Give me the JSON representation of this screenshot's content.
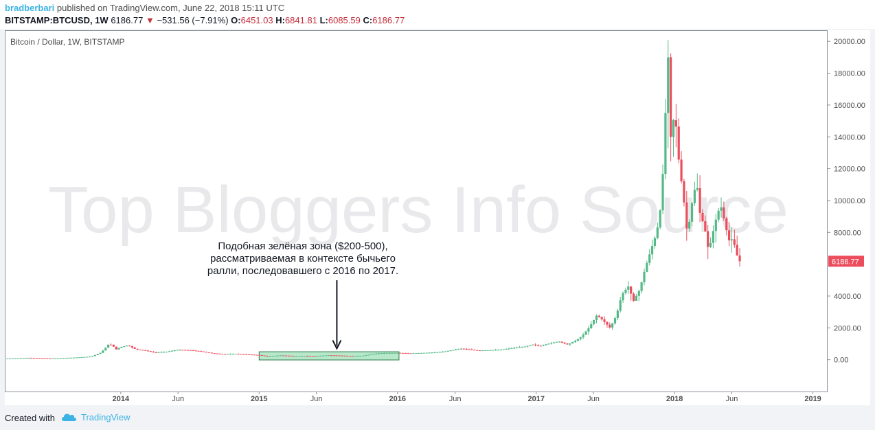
{
  "header": {
    "author": "bradberbari",
    "published_text": " published on TradingView.com, June 22, 2018 15:11 UTC",
    "symbol": "BITSTAMP:BTCUSD, 1W",
    "last": "6186.77",
    "change_arrow": "▼",
    "change": "−531.56 (−7.91%)",
    "o_label": "O:",
    "o_value": "6451.03",
    "h_label": "H:",
    "h_value": "6841.81",
    "l_label": "L:",
    "l_value": "6085.59",
    "c_label": "C:",
    "c_value": "6186.77"
  },
  "chart_title": "Bitcoin / Dollar, 1W, BITSTAMP",
  "watermark": "Top Bloggers Info Source",
  "annotation": {
    "lines": [
      "Подобная зелёная зона ($200-500),",
      "рассматриваемая в контексте бычьего",
      "ралли, последовавшего с 2016 по 2017."
    ]
  },
  "price_label": "6186.77",
  "footer": {
    "created_with": "Created with",
    "brand": "TradingView"
  },
  "colors": {
    "up": "#53b987",
    "down": "#eb4d5c",
    "zone_fill": "#9fe0b8",
    "zone_stroke": "#2f7a4b",
    "price_tag": "#eb4d5c",
    "author": "#3bb3e4"
  },
  "chart_data": {
    "type": "candlestick",
    "title": "Bitcoin / Dollar, 1W, BITSTAMP",
    "x_ticks": [
      {
        "label": "2014",
        "date": "2014-01-01",
        "bold": true
      },
      {
        "label": "Jun",
        "date": "2014-06-01",
        "bold": false
      },
      {
        "label": "2015",
        "date": "2015-01-01",
        "bold": true
      },
      {
        "label": "Jun",
        "date": "2015-06-01",
        "bold": false
      },
      {
        "label": "2016",
        "date": "2016-01-01",
        "bold": true
      },
      {
        "label": "Jun",
        "date": "2016-06-01",
        "bold": false
      },
      {
        "label": "2017",
        "date": "2017-01-01",
        "bold": true
      },
      {
        "label": "Jun",
        "date": "2017-06-01",
        "bold": false
      },
      {
        "label": "2018",
        "date": "2018-01-01",
        "bold": true
      },
      {
        "label": "Jun",
        "date": "2018-06-01",
        "bold": false
      },
      {
        "label": "2019",
        "date": "2019-01-01",
        "bold": true
      }
    ],
    "y_ticks": [
      "20000.00",
      "18000.00",
      "16000.00",
      "14000.00",
      "12000.00",
      "10000.00",
      "8000.00",
      "4000.00",
      "2000.00",
      "0.00"
    ],
    "ylim": [
      -2000,
      20700
    ],
    "xlim": [
      "2013-03-01",
      "2019-02-07"
    ],
    "zone": {
      "x_start": "2015-01-01",
      "x_end": "2016-01-05",
      "y_low": 200,
      "y_high": 500
    },
    "annotation_arrow_tip": {
      "date": "2015-07-25",
      "value": 700
    },
    "closes": [
      [
        "2013-03-01",
        70
      ],
      [
        "2013-05-01",
        120
      ],
      [
        "2013-07-01",
        90
      ],
      [
        "2013-09-01",
        130
      ],
      [
        "2013-10-15",
        200
      ],
      [
        "2013-11-10",
        450
      ],
      [
        "2013-11-20",
        700
      ],
      [
        "2013-12-01",
        1000
      ],
      [
        "2013-12-10",
        900
      ],
      [
        "2013-12-20",
        650
      ],
      [
        "2014-01-01",
        800
      ],
      [
        "2014-01-20",
        900
      ],
      [
        "2014-02-10",
        650
      ],
      [
        "2014-03-01",
        600
      ],
      [
        "2014-04-01",
        450
      ],
      [
        "2014-05-01",
        500
      ],
      [
        "2014-06-01",
        620
      ],
      [
        "2014-07-01",
        600
      ],
      [
        "2014-08-01",
        520
      ],
      [
        "2014-09-01",
        400
      ],
      [
        "2014-10-01",
        350
      ],
      [
        "2014-11-01",
        370
      ],
      [
        "2014-12-01",
        330
      ],
      [
        "2015-01-01",
        290
      ],
      [
        "2015-01-20",
        220
      ],
      [
        "2015-03-01",
        270
      ],
      [
        "2015-04-01",
        230
      ],
      [
        "2015-05-01",
        235
      ],
      [
        "2015-06-01",
        230
      ],
      [
        "2015-07-01",
        280
      ],
      [
        "2015-08-01",
        260
      ],
      [
        "2015-09-01",
        235
      ],
      [
        "2015-10-01",
        250
      ],
      [
        "2015-11-05",
        390
      ],
      [
        "2015-12-01",
        420
      ],
      [
        "2016-01-01",
        430
      ],
      [
        "2016-02-01",
        400
      ],
      [
        "2016-03-01",
        420
      ],
      [
        "2016-04-01",
        450
      ],
      [
        "2016-05-01",
        500
      ],
      [
        "2016-06-15",
        700
      ],
      [
        "2016-07-01",
        660
      ],
      [
        "2016-08-01",
        580
      ],
      [
        "2016-09-01",
        600
      ],
      [
        "2016-10-01",
        630
      ],
      [
        "2016-11-01",
        740
      ],
      [
        "2016-12-01",
        820
      ],
      [
        "2016-12-25",
        960
      ],
      [
        "2017-01-10",
        850
      ],
      [
        "2017-02-01",
        1000
      ],
      [
        "2017-03-01",
        1150
      ],
      [
        "2017-03-25",
        950
      ],
      [
        "2017-04-15",
        1200
      ],
      [
        "2017-05-01",
        1450
      ],
      [
        "2017-05-20",
        2000
      ],
      [
        "2017-06-10",
        2800
      ],
      [
        "2017-06-25",
        2500
      ],
      [
        "2017-07-15",
        2000
      ],
      [
        "2017-08-01",
        2800
      ],
      [
        "2017-08-15",
        4100
      ],
      [
        "2017-09-01",
        4600
      ],
      [
        "2017-09-15",
        3700
      ],
      [
        "2017-10-01",
        4400
      ],
      [
        "2017-10-15",
        5700
      ],
      [
        "2017-11-01",
        7000
      ],
      [
        "2017-11-15",
        8000
      ],
      [
        "2017-11-28",
        10000
      ],
      [
        "2017-12-07",
        15000
      ],
      [
        "2017-12-15",
        19000
      ],
      [
        "2017-12-22",
        14000
      ],
      [
        "2018-01-01",
        15500
      ],
      [
        "2018-01-08",
        14000
      ],
      [
        "2018-01-15",
        11500
      ],
      [
        "2018-01-22",
        11000
      ],
      [
        "2018-02-01",
        8200
      ],
      [
        "2018-02-08",
        8500
      ],
      [
        "2018-02-20",
        10500
      ],
      [
        "2018-03-01",
        11000
      ],
      [
        "2018-03-10",
        9000
      ],
      [
        "2018-03-20",
        8500
      ],
      [
        "2018-04-01",
        6800
      ],
      [
        "2018-04-15",
        8300
      ],
      [
        "2018-04-25",
        9300
      ],
      [
        "2018-05-05",
        9600
      ],
      [
        "2018-05-15",
        8400
      ],
      [
        "2018-05-25",
        7500
      ],
      [
        "2018-06-05",
        7600
      ],
      [
        "2018-06-12",
        6700
      ],
      [
        "2018-06-22",
        6186.77
      ]
    ]
  }
}
